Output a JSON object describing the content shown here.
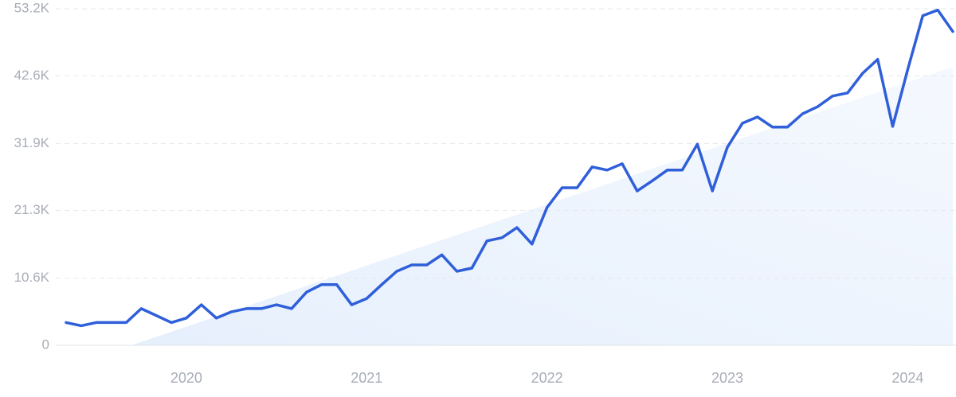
{
  "chart_data": {
    "type": "line",
    "categories": [
      null,
      null,
      null,
      null,
      null,
      null,
      null,
      null,
      "2020",
      null,
      null,
      null,
      null,
      null,
      null,
      null,
      null,
      null,
      null,
      null,
      "2021",
      null,
      null,
      null,
      null,
      null,
      null,
      null,
      null,
      null,
      null,
      null,
      "2022",
      null,
      null,
      null,
      null,
      null,
      null,
      null,
      null,
      null,
      null,
      null,
      "2023",
      null,
      null,
      null,
      null,
      null,
      null,
      null,
      null,
      null,
      null,
      null,
      "2024",
      null,
      null,
      null
    ],
    "series": [
      {
        "color": "#2f5fd9",
        "values": [
          3600,
          3100,
          3600,
          3600,
          3600,
          5800,
          4700,
          3600,
          4300,
          6400,
          4300,
          5300,
          5800,
          5800,
          6400,
          5800,
          8400,
          9600,
          9600,
          6400,
          7400,
          9600,
          11700,
          12700,
          12700,
          14300,
          11700,
          12200,
          16500,
          17000,
          18600,
          16000,
          21800,
          24900,
          24900,
          28200,
          27700,
          28700,
          24400,
          26000,
          27700,
          27700,
          31800,
          24400,
          31300,
          35100,
          36100,
          34500,
          34500,
          36600,
          37700,
          39400,
          39900,
          43000,
          45200,
          34600,
          43600,
          52100,
          53000,
          49600
        ]
      }
    ],
    "ylim": [
      0,
      53200
    ],
    "yticks": [
      0,
      {
        "value": 10600,
        "label": "10.6K"
      },
      {
        "value": 21300,
        "label": "21.3K"
      },
      {
        "value": 31900,
        "label": "31.9K"
      },
      {
        "value": 42600,
        "label": "42.6K"
      },
      {
        "value": 53200,
        "label": "53.2K"
      }
    ],
    "grid": true
  }
}
